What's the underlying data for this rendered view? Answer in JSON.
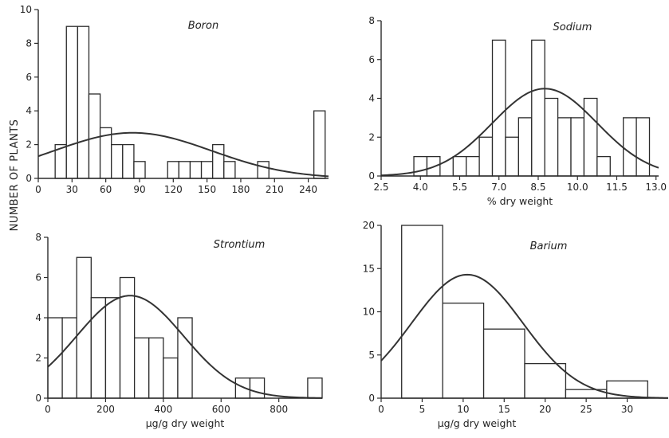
{
  "figure": {
    "ylabel": "NUMBER OF PLANTS"
  },
  "chart_data": [
    {
      "type": "bar",
      "subtype": "histogram with fitted normal curve",
      "title": "Boron",
      "xlabel": "",
      "xlim": [
        0,
        258
      ],
      "ylim": [
        0,
        10
      ],
      "xticks": [
        0,
        30,
        60,
        90,
        120,
        150,
        180,
        210,
        240
      ],
      "yticks": [
        0,
        2,
        4,
        6,
        8,
        10
      ],
      "bins": [
        {
          "x0": 15,
          "x1": 25,
          "count": 2
        },
        {
          "x0": 25,
          "x1": 35,
          "count": 9
        },
        {
          "x0": 35,
          "x1": 45,
          "count": 9
        },
        {
          "x0": 45,
          "x1": 55,
          "count": 5
        },
        {
          "x0": 55,
          "x1": 65,
          "count": 3
        },
        {
          "x0": 65,
          "x1": 75,
          "count": 2
        },
        {
          "x0": 75,
          "x1": 85,
          "count": 2
        },
        {
          "x0": 85,
          "x1": 95,
          "count": 1
        },
        {
          "x0": 115,
          "x1": 125,
          "count": 1
        },
        {
          "x0": 125,
          "x1": 135,
          "count": 1
        },
        {
          "x0": 135,
          "x1": 145,
          "count": 1
        },
        {
          "x0": 145,
          "x1": 155,
          "count": 1
        },
        {
          "x0": 155,
          "x1": 165,
          "count": 2
        },
        {
          "x0": 165,
          "x1": 175,
          "count": 1
        },
        {
          "x0": 195,
          "x1": 205,
          "count": 1
        },
        {
          "x0": 245,
          "x1": 255,
          "count": 4
        }
      ],
      "curve": {
        "mean": 84,
        "sd": 70,
        "peak": 2.7
      }
    },
    {
      "type": "bar",
      "subtype": "histogram with fitted normal curve",
      "title": "Sodium",
      "xlabel": "% dry weight",
      "xlim": [
        2.5,
        13.1
      ],
      "ylim": [
        0,
        8
      ],
      "xticks": [
        2.5,
        4.0,
        5.5,
        7.0,
        8.5,
        10.0,
        11.5,
        13.0
      ],
      "xticklabels": [
        "2.5",
        "4.0",
        "5.5",
        "7.0",
        "8.5",
        "10.0",
        "11.5",
        "13.0"
      ],
      "yticks": [
        0,
        2,
        4,
        6,
        8
      ],
      "bins": [
        {
          "x0": 3.75,
          "x1": 4.25,
          "count": 1
        },
        {
          "x0": 4.25,
          "x1": 4.75,
          "count": 1
        },
        {
          "x0": 5.25,
          "x1": 5.75,
          "count": 1
        },
        {
          "x0": 5.75,
          "x1": 6.25,
          "count": 1
        },
        {
          "x0": 6.25,
          "x1": 6.75,
          "count": 2
        },
        {
          "x0": 6.75,
          "x1": 7.25,
          "count": 7
        },
        {
          "x0": 7.25,
          "x1": 7.75,
          "count": 2
        },
        {
          "x0": 7.75,
          "x1": 8.25,
          "count": 3
        },
        {
          "x0": 8.25,
          "x1": 8.75,
          "count": 7
        },
        {
          "x0": 8.75,
          "x1": 9.25,
          "count": 4
        },
        {
          "x0": 9.25,
          "x1": 9.75,
          "count": 3
        },
        {
          "x0": 9.75,
          "x1": 10.25,
          "count": 3
        },
        {
          "x0": 10.25,
          "x1": 10.75,
          "count": 4
        },
        {
          "x0": 10.75,
          "x1": 11.25,
          "count": 1
        },
        {
          "x0": 11.75,
          "x1": 12.25,
          "count": 3
        },
        {
          "x0": 12.25,
          "x1": 12.75,
          "count": 3
        }
      ],
      "curve": {
        "mean": 8.75,
        "sd": 2.0,
        "peak": 4.5
      }
    },
    {
      "type": "bar",
      "subtype": "histogram with fitted normal curve",
      "title": "Strontium",
      "xlabel": "μg/g dry weight",
      "xlim": [
        0,
        950
      ],
      "ylim": [
        0,
        8
      ],
      "xticks": [
        0,
        200,
        400,
        600,
        800
      ],
      "yticks": [
        0,
        2,
        4,
        6,
        8
      ],
      "bins": [
        {
          "x0": 0,
          "x1": 50,
          "count": 4
        },
        {
          "x0": 50,
          "x1": 100,
          "count": 4
        },
        {
          "x0": 100,
          "x1": 150,
          "count": 7
        },
        {
          "x0": 150,
          "x1": 200,
          "count": 5
        },
        {
          "x0": 200,
          "x1": 250,
          "count": 5
        },
        {
          "x0": 250,
          "x1": 300,
          "count": 6
        },
        {
          "x0": 300,
          "x1": 350,
          "count": 3
        },
        {
          "x0": 350,
          "x1": 400,
          "count": 3
        },
        {
          "x0": 400,
          "x1": 450,
          "count": 2
        },
        {
          "x0": 450,
          "x1": 500,
          "count": 4
        },
        {
          "x0": 650,
          "x1": 700,
          "count": 1
        },
        {
          "x0": 700,
          "x1": 750,
          "count": 1
        },
        {
          "x0": 900,
          "x1": 950,
          "count": 1
        }
      ],
      "curve": {
        "mean": 285,
        "sd": 185,
        "peak": 5.1
      }
    },
    {
      "type": "bar",
      "subtype": "histogram with fitted normal curve",
      "title": "Barium",
      "xlabel": "μg/g dry weight",
      "xlim": [
        0,
        35
      ],
      "ylim": [
        0,
        20
      ],
      "xticks": [
        0,
        5,
        10,
        15,
        20,
        25,
        30
      ],
      "yticks": [
        0,
        5,
        10,
        15,
        20
      ],
      "bins": [
        {
          "x0": 2.5,
          "x1": 7.5,
          "count": 20
        },
        {
          "x0": 7.5,
          "x1": 12.5,
          "count": 11
        },
        {
          "x0": 12.5,
          "x1": 17.5,
          "count": 8
        },
        {
          "x0": 17.5,
          "x1": 22.5,
          "count": 4
        },
        {
          "x0": 22.5,
          "x1": 27.5,
          "count": 1
        },
        {
          "x0": 27.5,
          "x1": 32.5,
          "count": 2
        }
      ],
      "curve": {
        "mean": 10.5,
        "sd": 6.8,
        "peak": 14.3
      }
    }
  ]
}
